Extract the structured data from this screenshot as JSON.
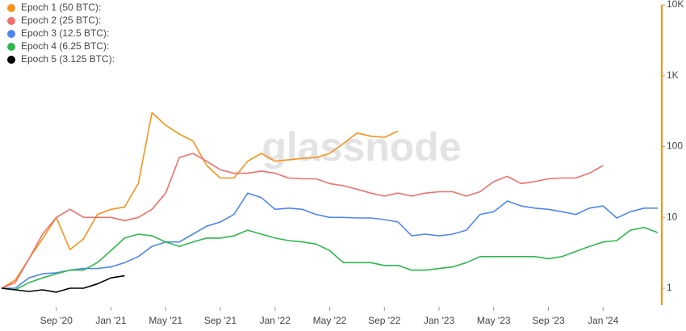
{
  "chart_data": {
    "type": "line",
    "watermark": "glassnode",
    "log_scale": true,
    "legend": "top-left",
    "x": [
      "2020-05",
      "2020-06",
      "2020-07",
      "2020-08",
      "2020-09",
      "2020-10",
      "2020-11",
      "2020-12",
      "2021-01",
      "2021-02",
      "2021-03",
      "2021-04",
      "2021-05",
      "2021-06",
      "2021-07",
      "2021-08",
      "2021-09",
      "2021-10",
      "2021-11",
      "2021-12",
      "2022-01",
      "2022-02",
      "2022-03",
      "2022-04",
      "2022-05",
      "2022-06",
      "2022-07",
      "2022-08",
      "2022-09",
      "2022-10",
      "2022-11",
      "2022-12",
      "2023-01",
      "2023-02",
      "2023-03",
      "2023-04",
      "2023-05",
      "2023-06",
      "2023-07",
      "2023-08",
      "2023-09",
      "2023-10",
      "2023-11",
      "2023-12",
      "2024-01",
      "2024-02",
      "2024-03",
      "2024-04",
      "2024-05"
    ],
    "xlim": [
      "2020-05",
      "2024-05"
    ],
    "xticks": [
      {
        "value": "2020-09",
        "label": "Sep '20"
      },
      {
        "value": "2021-01",
        "label": "Jan '21"
      },
      {
        "value": "2021-05",
        "label": "May '21"
      },
      {
        "value": "2021-09",
        "label": "Sep '21"
      },
      {
        "value": "2022-01",
        "label": "Jan '22"
      },
      {
        "value": "2022-05",
        "label": "May '22"
      },
      {
        "value": "2022-09",
        "label": "Sep '22"
      },
      {
        "value": "2023-01",
        "label": "Jan '23"
      },
      {
        "value": "2023-05",
        "label": "May '23"
      },
      {
        "value": "2023-09",
        "label": "Sep '23"
      },
      {
        "value": "2024-01",
        "label": "Jan '24"
      }
    ],
    "ylim": [
      0.6,
      10000
    ],
    "yticks": [
      1,
      10,
      100,
      {
        "value": 1000,
        "label": "1K"
      },
      {
        "value": 10000,
        "label": "10K"
      }
    ],
    "series": [
      {
        "name": "Epoch 1 (50 BTC):",
        "color": "#f7931a",
        "values": [
          1,
          1.3,
          2.6,
          5,
          10,
          3.5,
          5,
          11,
          13,
          14,
          30,
          300,
          200,
          150,
          120,
          54,
          36,
          36,
          62,
          80,
          62,
          65,
          68,
          70,
          80,
          110,
          155,
          140,
          135,
          165,
          null,
          null,
          null,
          null,
          null,
          null,
          null,
          null,
          null,
          null,
          null,
          null,
          null,
          null,
          null,
          null,
          null,
          null,
          null
        ]
      },
      {
        "name": "Epoch 2 (25 BTC):",
        "color": "#f0706a",
        "values": [
          1,
          1.2,
          2.6,
          5.8,
          10,
          13,
          10,
          10,
          10,
          9,
          10,
          13,
          22,
          70,
          80,
          62,
          47,
          42,
          42,
          45,
          42,
          36,
          35,
          35,
          30,
          28,
          25,
          22,
          20,
          22,
          20,
          22,
          23,
          23,
          20,
          23,
          32,
          38,
          30,
          32,
          35,
          36,
          36,
          42,
          54,
          null,
          null,
          null,
          null
        ]
      },
      {
        "name": "Epoch 3 (12.5 BTC):",
        "color": "#4e86f0",
        "values": [
          1,
          1.0,
          1.4,
          1.6,
          1.65,
          1.8,
          1.9,
          1.9,
          2.0,
          2.3,
          2.8,
          3.9,
          4.5,
          4.5,
          5.8,
          7.5,
          8.6,
          11,
          22,
          19,
          13,
          13.5,
          13,
          11,
          10,
          10,
          9.8,
          9.8,
          9.3,
          8.6,
          5.5,
          5.8,
          5.5,
          5.8,
          6.6,
          11,
          12,
          17,
          14.5,
          13.5,
          13,
          12,
          11,
          13.5,
          14.5,
          9.8,
          12,
          13.5,
          13.5
        ]
      },
      {
        "name": "Epoch 4 (6.25 BTC):",
        "color": "#2db84d",
        "values": [
          1,
          0.95,
          1.2,
          1.4,
          1.6,
          1.8,
          1.8,
          2.3,
          3.4,
          5.1,
          5.8,
          5.5,
          4.5,
          3.9,
          4.5,
          5.1,
          5.1,
          5.5,
          6.6,
          5.8,
          5.1,
          4.7,
          4.5,
          4.2,
          3.4,
          2.3,
          2.3,
          2.3,
          2.1,
          2.1,
          1.8,
          1.8,
          1.9,
          2.0,
          2.3,
          2.8,
          2.8,
          2.8,
          2.8,
          2.8,
          2.6,
          2.8,
          3.3,
          3.9,
          4.5,
          4.7,
          6.6,
          7.2,
          6.1
        ]
      },
      {
        "name": "Epoch 5 (3.125 BTC):",
        "color": "#000000",
        "values": [
          1,
          0.95,
          0.9,
          0.95,
          0.88,
          1.0,
          1.0,
          1.15,
          1.4,
          1.5,
          null,
          null,
          null,
          null,
          null,
          null,
          null,
          null,
          null,
          null,
          null,
          null,
          null,
          null,
          null,
          null,
          null,
          null,
          null,
          null,
          null,
          null,
          null,
          null,
          null,
          null,
          null,
          null,
          null,
          null,
          null,
          null,
          null,
          null,
          null,
          null,
          null,
          null,
          null
        ]
      }
    ]
  }
}
